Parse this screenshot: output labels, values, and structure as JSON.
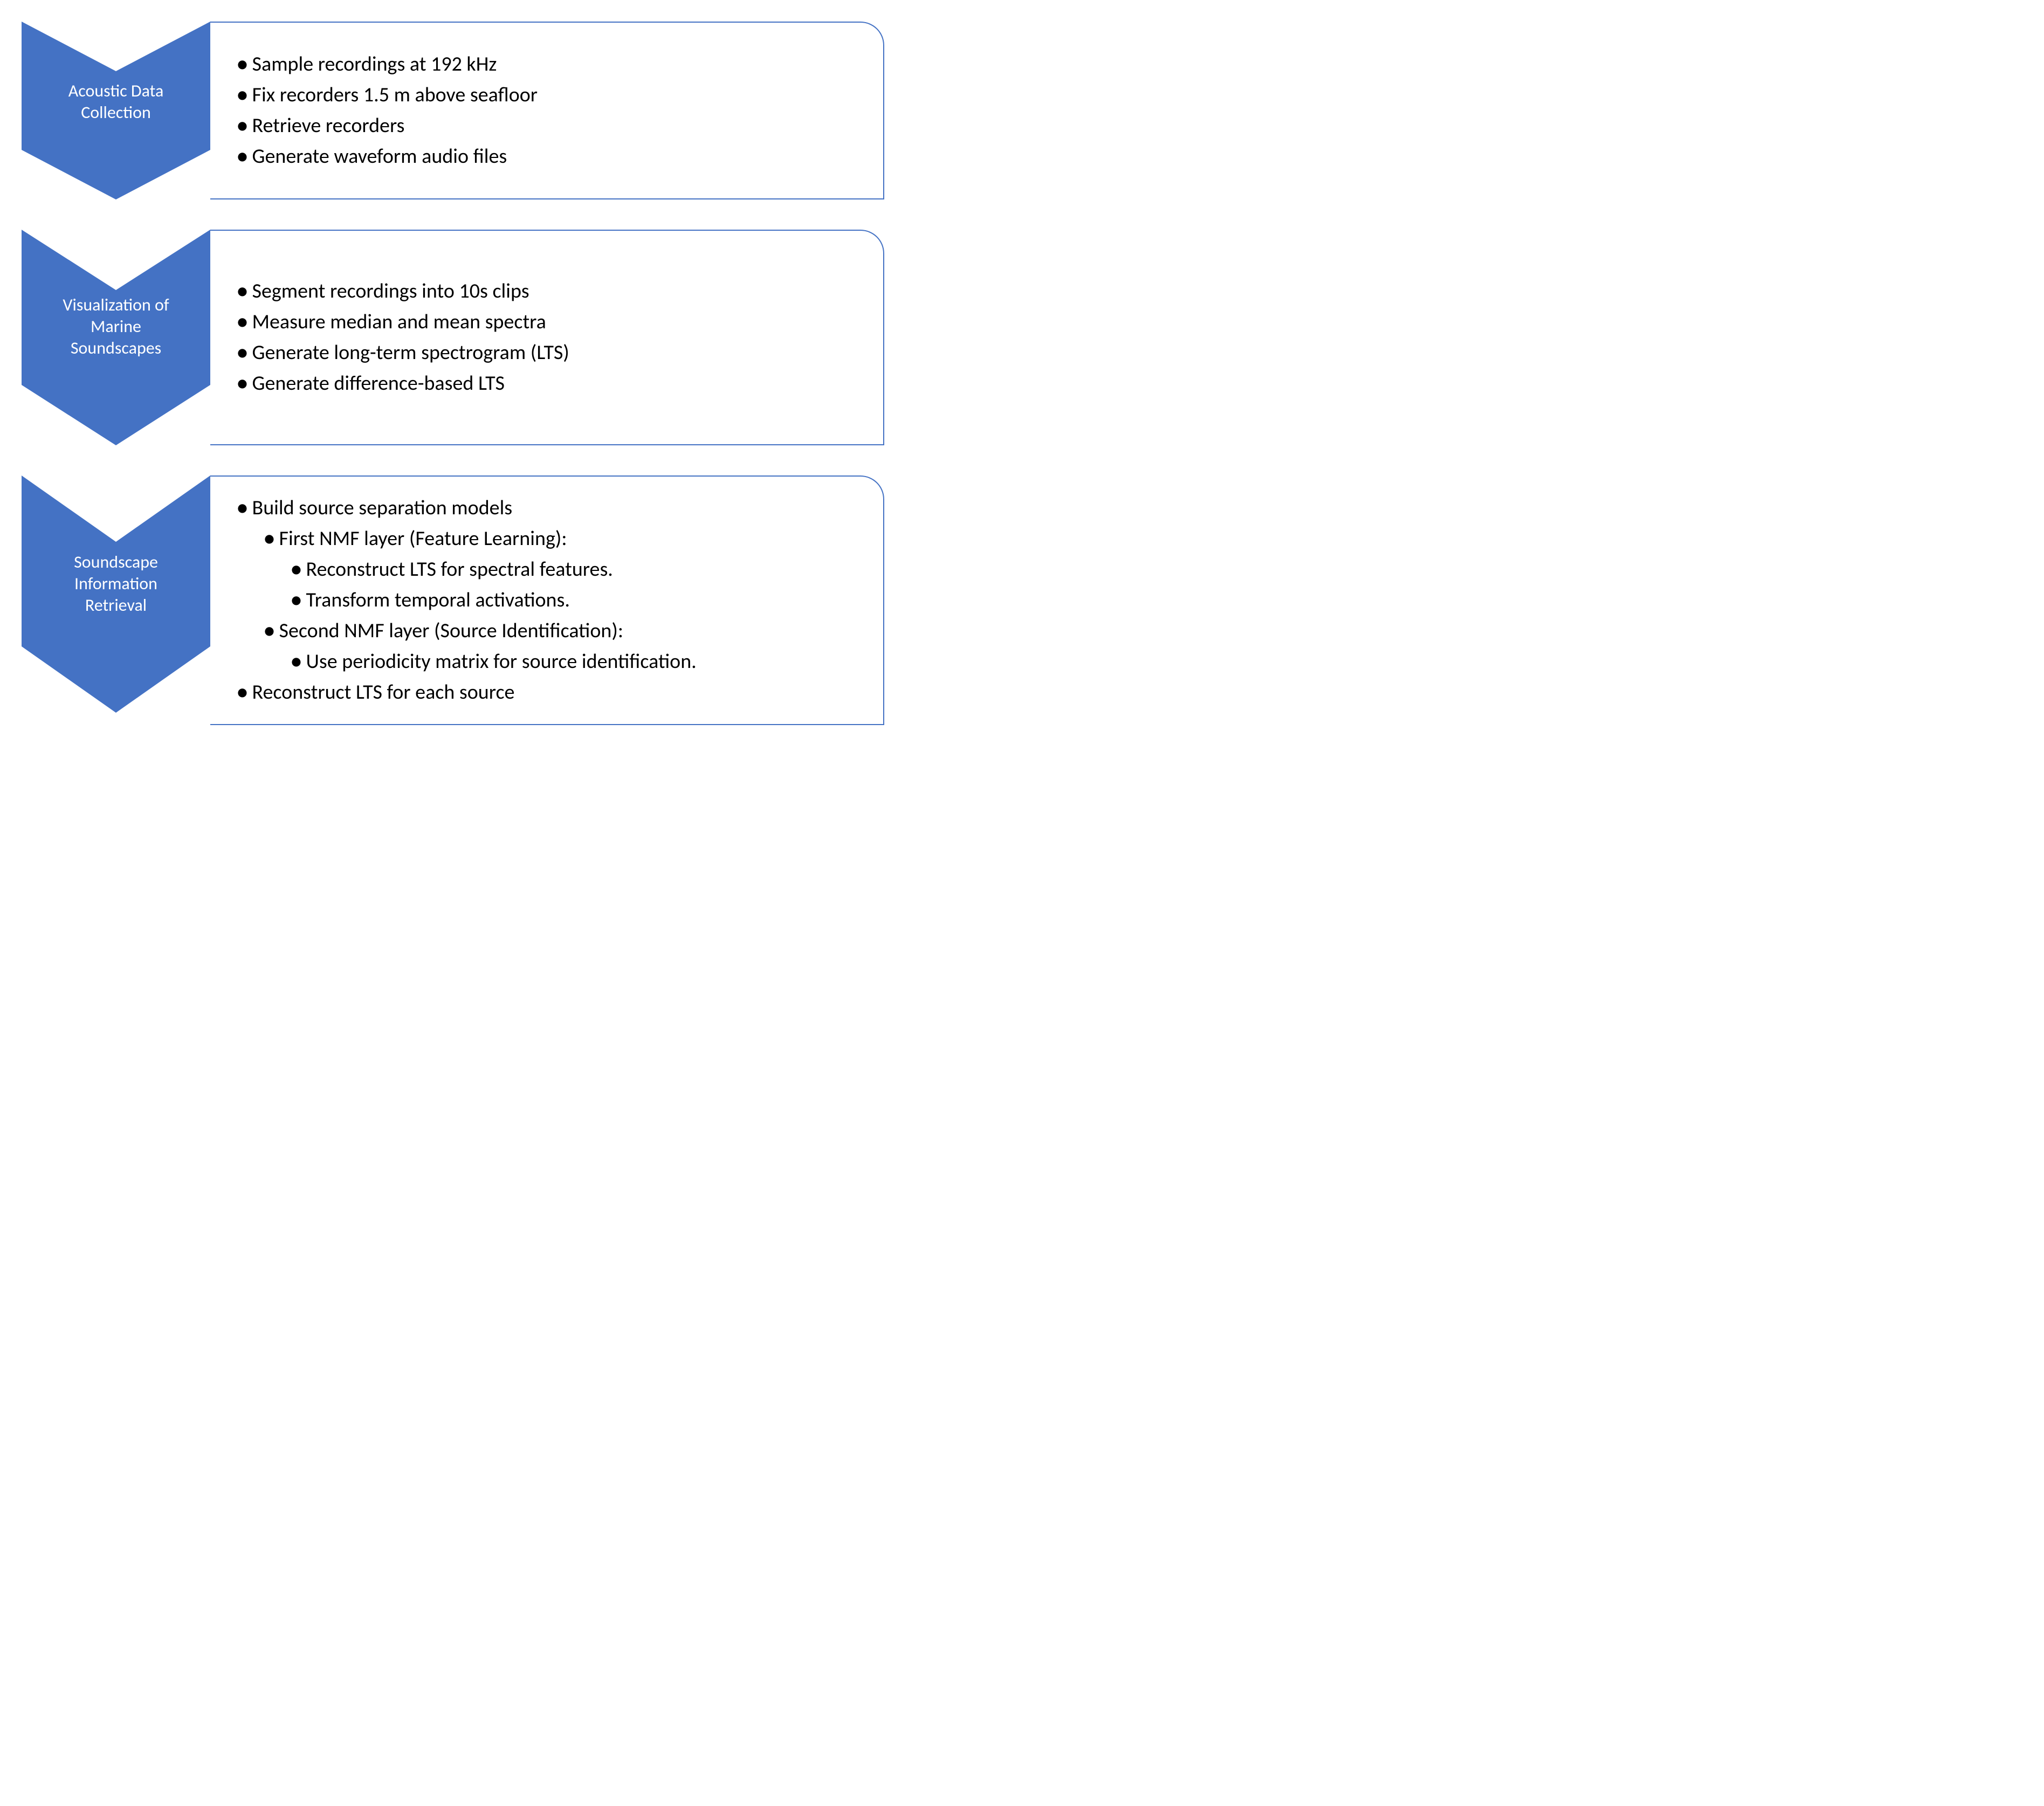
{
  "colors": {
    "chevron_fill": "#4472c4",
    "chevron_text": "#ffffff",
    "box_border": "#4472c4",
    "box_bg": "#ffffff",
    "text": "#000000"
  },
  "layout": {
    "type": "flowchart",
    "direction": "vertical",
    "chevron_width": 350,
    "step_gap": 56,
    "box_radius_tr": 44,
    "font_family": "Segoe UI",
    "label_fontsize": 32,
    "bullet_fontsize": 38
  },
  "steps": [
    {
      "id": "acoustic-data-collection",
      "label_line1": "Acoustic Data",
      "label_line2": "Collection",
      "chevron_height": 330,
      "label_top_pct": 33,
      "bullets": [
        {
          "text": "Sample recordings at 192 kHz"
        },
        {
          "text": "Fix recorders 1.5 m above seafloor"
        },
        {
          "text": "Retrieve recorders"
        },
        {
          "text": "Generate waveform audio files"
        }
      ]
    },
    {
      "id": "visualization-of-marine-soundscapes",
      "label_line1": "Visualization of",
      "label_line2": "Marine",
      "label_line3": "Soundscapes",
      "chevron_height": 400,
      "label_top_pct": 30,
      "bullets": [
        {
          "text": "Segment recordings into 10s clips"
        },
        {
          "text": "Measure median and mean spectra"
        },
        {
          "text": "Generate long-term spectrogram (LTS)"
        },
        {
          "text": "Generate difference-based LTS"
        }
      ]
    },
    {
      "id": "soundscape-information-retrieval",
      "label_line1": "Soundscape",
      "label_line2": "Information",
      "label_line3": "Retrieval",
      "chevron_height": 440,
      "label_top_pct": 32,
      "bullets": [
        {
          "text": "Build source separation models",
          "children": [
            {
              "text": "First NMF layer (Feature Learning):",
              "children": [
                {
                  "text": "Reconstruct LTS for spectral features."
                },
                {
                  "text": "Transform temporal activations."
                }
              ]
            },
            {
              "text": "Second NMF layer (Source Identification):",
              "children": [
                {
                  "text": "Use periodicity matrix for source identification."
                }
              ]
            }
          ]
        },
        {
          "text": "Reconstruct LTS for each source"
        }
      ]
    }
  ]
}
